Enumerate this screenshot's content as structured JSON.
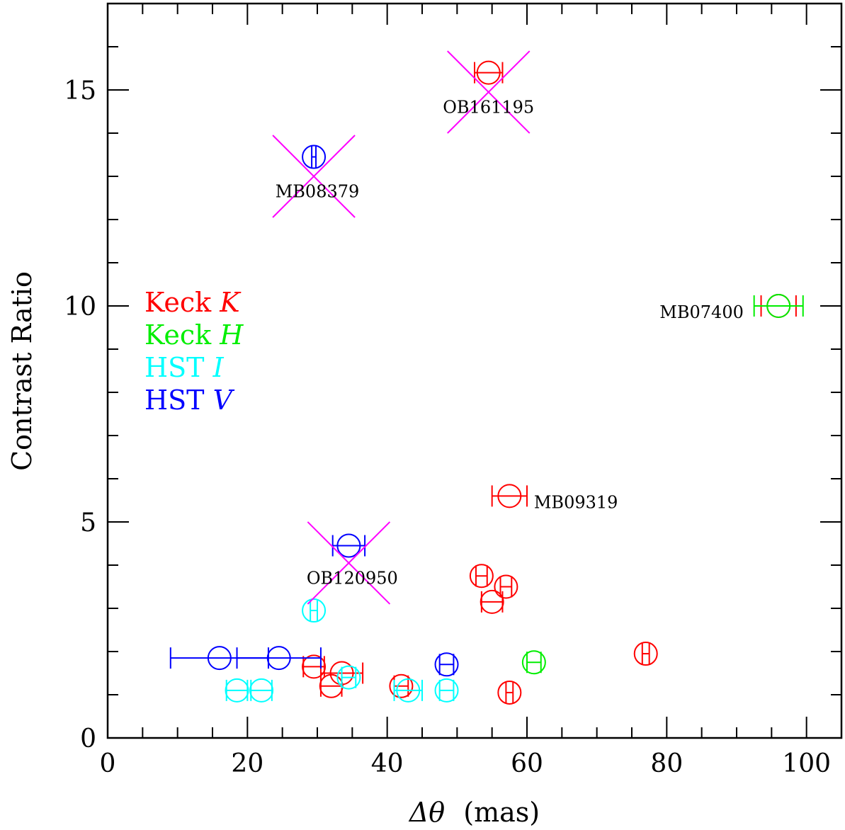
{
  "chart_data": {
    "type": "scatter",
    "xlabel": "Δθ (mas)",
    "xlabel_symbol": "Δθ",
    "xlabel_unit": "(mas)",
    "ylabel": "Contrast Ratio",
    "xlim": [
      0,
      105
    ],
    "ylim": [
      0,
      17
    ],
    "xticks": [
      0,
      20,
      40,
      60,
      80,
      100
    ],
    "yticks": [
      0,
      5,
      10,
      15
    ],
    "grid": false,
    "legend_position": "left-middle",
    "legend": [
      {
        "label": "Keck",
        "band": "K",
        "color": "#ff0000"
      },
      {
        "label": "Keck",
        "band": "H",
        "color": "#00ee00"
      },
      {
        "label": "HST",
        "band": "I",
        "color": "#00ffff"
      },
      {
        "label": "HST",
        "band": "V",
        "color": "#0000ff"
      }
    ],
    "series": [
      {
        "band": "K",
        "color": "#ff0000",
        "points": [
          {
            "x": 54.5,
            "y": 15.4,
            "xerr": 2.0
          },
          {
            "x": 96.0,
            "y": 10.0,
            "xerr": 2.5
          },
          {
            "x": 57.5,
            "y": 5.6,
            "xerr": 2.5
          },
          {
            "x": 53.5,
            "y": 3.75,
            "xerr": 0.8
          },
          {
            "x": 57.0,
            "y": 3.5,
            "xerr": 0.8
          },
          {
            "x": 55.0,
            "y": 3.15,
            "xerr": 1.5
          },
          {
            "x": 77.0,
            "y": 1.95,
            "xerr": 0.5
          },
          {
            "x": 29.5,
            "y": 1.65,
            "xerr": 1.5
          },
          {
            "x": 33.5,
            "y": 1.5,
            "xerr": 3.0
          },
          {
            "x": 32.0,
            "y": 1.2,
            "xerr": 1.5
          },
          {
            "x": 42.0,
            "y": 1.2,
            "xerr": 1.0
          },
          {
            "x": 57.5,
            "y": 1.05,
            "xerr": 0.5
          }
        ]
      },
      {
        "band": "H",
        "color": "#00ee00",
        "points": [
          {
            "x": 96.0,
            "y": 10.0,
            "xerr": 3.5
          },
          {
            "x": 61.0,
            "y": 1.75,
            "xerr": 1.0
          }
        ]
      },
      {
        "band": "I",
        "color": "#00ffff",
        "points": [
          {
            "x": 29.5,
            "y": 2.95,
            "xerr": 0.5
          },
          {
            "x": 18.5,
            "y": 1.1,
            "xerr": 1.5
          },
          {
            "x": 22.0,
            "y": 1.1,
            "xerr": 1.5
          },
          {
            "x": 34.5,
            "y": 1.4,
            "xerr": 1.0
          },
          {
            "x": 43.0,
            "y": 1.1,
            "xerr": 2.0
          },
          {
            "x": 48.5,
            "y": 1.1,
            "xerr": 1.0
          }
        ]
      },
      {
        "band": "V",
        "color": "#0000ff",
        "points": [
          {
            "x": 29.5,
            "y": 13.45,
            "xerr": 0.3
          },
          {
            "x": 34.5,
            "y": 4.45,
            "xerr": 2.3
          },
          {
            "x": 16.0,
            "y": 1.85,
            "xerr": 7.0
          },
          {
            "x": 24.5,
            "y": 1.85,
            "xerr": 6.0
          },
          {
            "x": 48.5,
            "y": 1.7,
            "xerr": 1.0
          }
        ]
      }
    ],
    "excluded_markers": [
      {
        "x": 54.5,
        "y": 14.95,
        "color": "#ff00ff"
      },
      {
        "x": 29.5,
        "y": 13.0,
        "color": "#ff00ff"
      },
      {
        "x": 34.5,
        "y": 4.05,
        "color": "#ff00ff"
      }
    ],
    "annotations": [
      {
        "text": "OB161195",
        "x": 54.5,
        "y": 14.6,
        "anchor": "middle"
      },
      {
        "text": "MB08379",
        "x": 30.0,
        "y": 12.65,
        "anchor": "middle"
      },
      {
        "text": "MB07400",
        "x": 91.0,
        "y": 9.85,
        "anchor": "end"
      },
      {
        "text": "MB09319",
        "x": 61.0,
        "y": 5.45,
        "anchor": "start"
      },
      {
        "text": "OB120950",
        "x": 35.0,
        "y": 3.7,
        "anchor": "middle"
      }
    ]
  }
}
